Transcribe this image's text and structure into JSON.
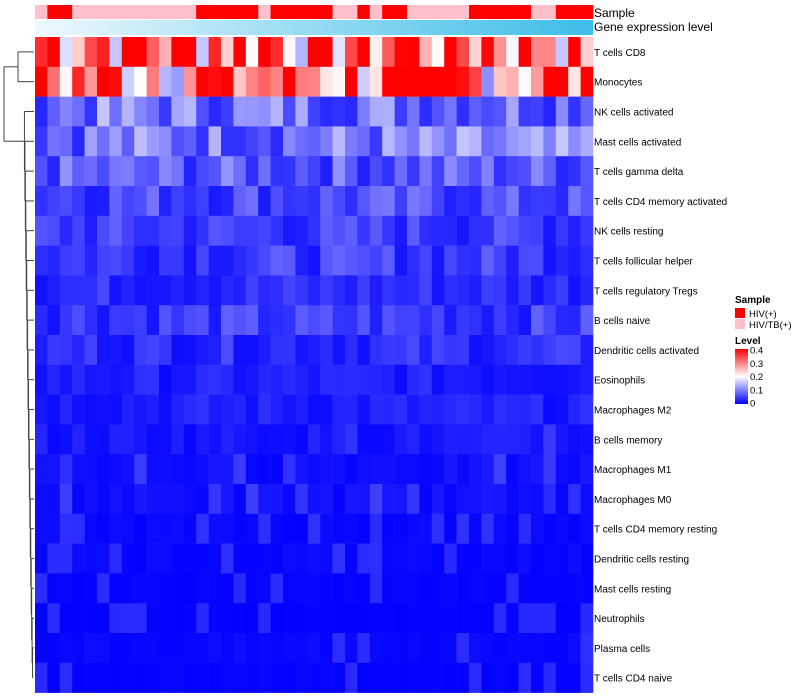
{
  "chart_data": {
    "type": "heatmap",
    "title": "",
    "n_samples": 45,
    "annotation_labels": {
      "sample": "Sample",
      "expression": "Gene expression level"
    },
    "sample_groups": [
      "HIV(+)",
      "HIV/TB(+)"
    ],
    "sample_annotation": [
      "HIV/TB(+)",
      "HIV(+)",
      "HIV(+)",
      "HIV/TB(+)",
      "HIV/TB(+)",
      "HIV/TB(+)",
      "HIV/TB(+)",
      "HIV/TB(+)",
      "HIV/TB(+)",
      "HIV/TB(+)",
      "HIV/TB(+)",
      "HIV/TB(+)",
      "HIV/TB(+)",
      "HIV(+)",
      "HIV(+)",
      "HIV(+)",
      "HIV(+)",
      "HIV(+)",
      "HIV/TB(+)",
      "HIV(+)",
      "HIV(+)",
      "HIV(+)",
      "HIV(+)",
      "HIV(+)",
      "HIV/TB(+)",
      "HIV/TB(+)",
      "HIV(+)",
      "HIV/TB(+)",
      "HIV(+)",
      "HIV(+)",
      "HIV/TB(+)",
      "HIV/TB(+)",
      "HIV/TB(+)",
      "HIV/TB(+)",
      "HIV/TB(+)",
      "HIV(+)",
      "HIV(+)",
      "HIV(+)",
      "HIV(+)",
      "HIV(+)",
      "HIV/TB(+)",
      "HIV/TB(+)",
      "HIV(+)",
      "HIV(+)",
      "HIV(+)"
    ],
    "rows": [
      "T cells CD8",
      "Monocytes",
      "NK cells activated",
      "Mast cells activated",
      "T cells gamma delta",
      "T cells CD4 memory activated",
      "NK cells resting",
      "T cells follicular helper",
      "T cells regulatory  Tregs",
      "B cells naive",
      "Dendritic cells activated",
      "Eosinophils",
      "Macrophages M2",
      "B cells memory",
      "Macrophages M1",
      "Macrophages M0",
      "T cells CD4 memory resting",
      "Dendritic cells resting",
      "Mast cells resting",
      "Neutrophils",
      "Plasma cells",
      "T cells CD4 naive"
    ],
    "row_means": [
      0.32,
      0.28,
      0.08,
      0.08,
      0.06,
      0.05,
      0.04,
      0.04,
      0.03,
      0.04,
      0.03,
      0.02,
      0.02,
      0.015,
      0.01,
      0.01,
      0.005,
      0.005,
      0.003,
      0.002,
      0.005,
      0.003
    ],
    "value_range": [
      0,
      0.4
    ],
    "legend": {
      "sample_title": "Sample",
      "level_title": "Level",
      "level_ticks": [
        "0.4",
        "0.3",
        "0.2",
        "0.1",
        "0"
      ],
      "placement": "right"
    },
    "row_dendrogram": true,
    "colors": {
      "low": "#0000ff",
      "mid": "#ffffff",
      "high": "#ff0000",
      "group_hiv": "#ff0000",
      "group_hivtb": "#ffc0cb",
      "expression_light": "#eef8fc",
      "expression_dark": "#3cbde8"
    }
  }
}
